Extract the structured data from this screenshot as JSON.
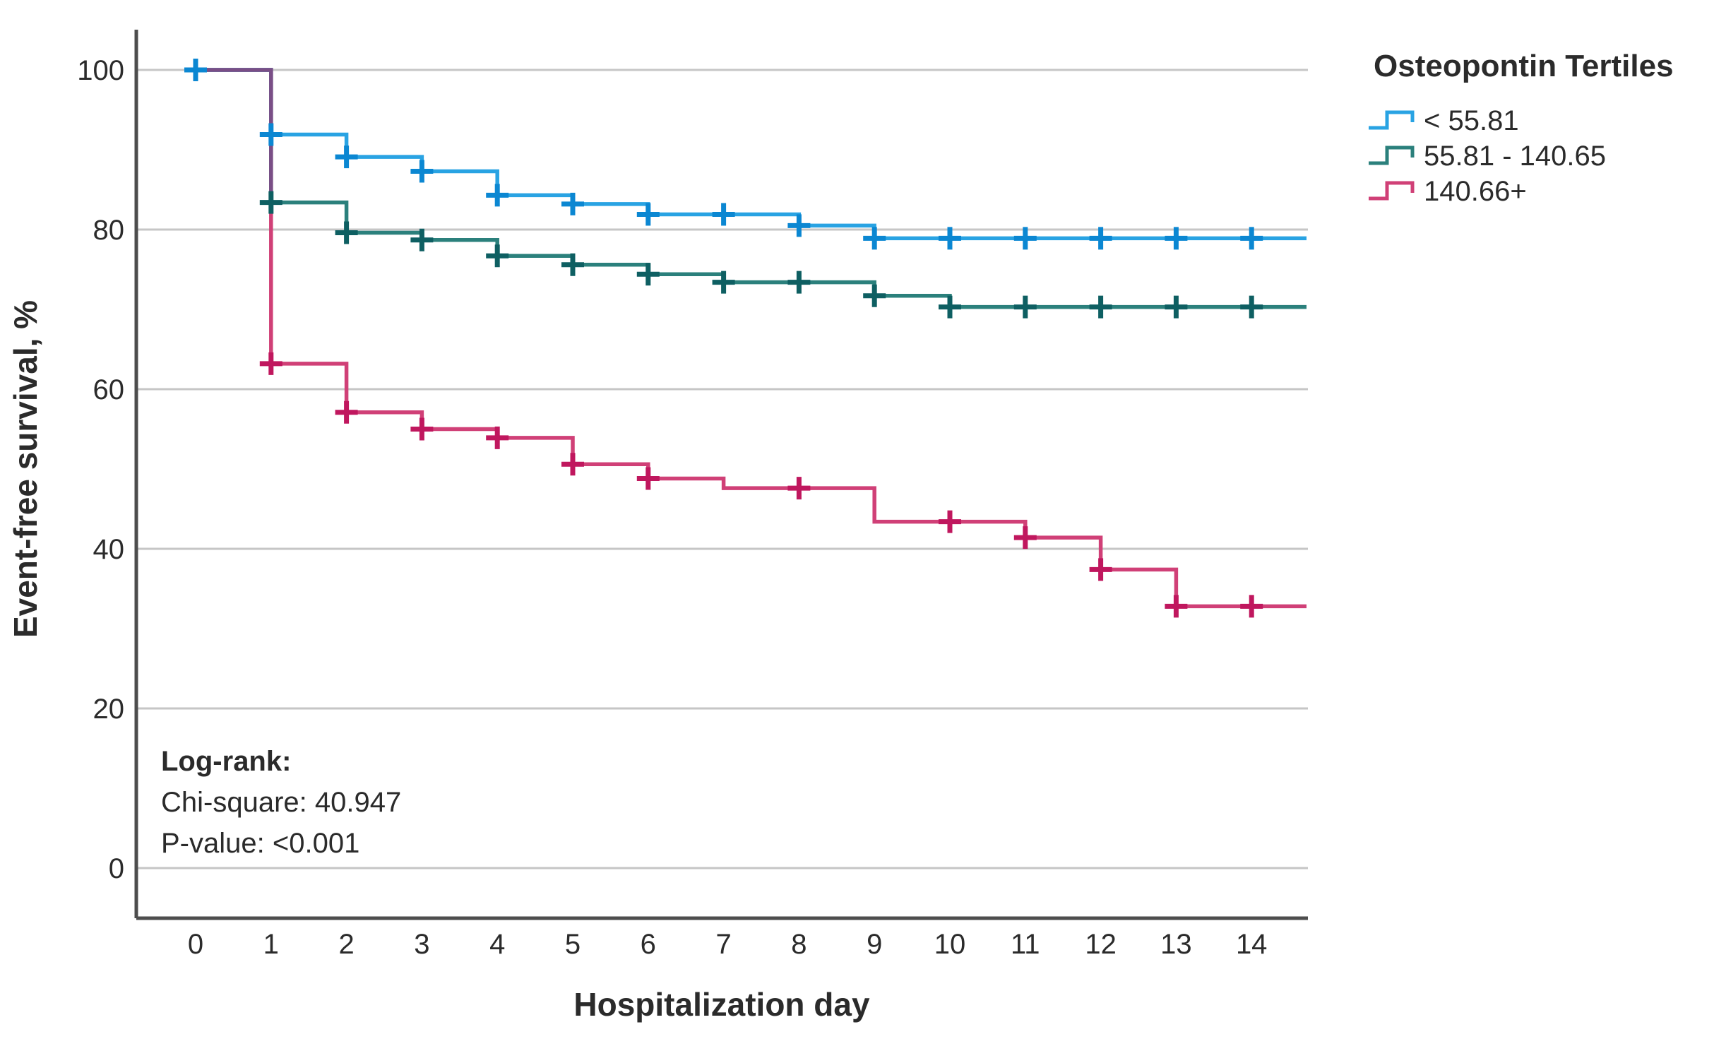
{
  "chart_data": {
    "type": "line",
    "subtype": "kaplan-meier-step",
    "xlabel": "Hospitalization day",
    "ylabel": "Event-free survival, %",
    "xticks": [
      0,
      1,
      2,
      3,
      4,
      5,
      6,
      7,
      8,
      9,
      10,
      11,
      12,
      13,
      14
    ],
    "yticks": [
      0,
      20,
      40,
      60,
      80,
      100
    ],
    "xlim": [
      0,
      14.73
    ],
    "ylim": [
      0,
      100
    ],
    "grid": true,
    "legend_position": "right",
    "legend_title": "Osteopontin Tertiles",
    "colors": {
      "grid": "#c6c6c6",
      "axis": "#4d4d4d",
      "text": "#2b2b2b",
      "overlap_segment": "#7a4e86"
    },
    "annotation": {
      "title": "Log-rank:",
      "lines": [
        "Chi-square: 40.947",
        "P-value: <0.001"
      ]
    },
    "series": [
      {
        "name": "< 55.81",
        "line_color": "#29a3e3",
        "mark_color": "#0b87d2",
        "start": [
          0,
          100
        ],
        "steps": [
          [
            1,
            91.9
          ],
          [
            2,
            89.1
          ],
          [
            3,
            87.3
          ],
          [
            4,
            84.3
          ],
          [
            5,
            83.2
          ],
          [
            6,
            81.9
          ],
          [
            8,
            80.5
          ],
          [
            9,
            78.9
          ]
        ],
        "end_value": 78.9,
        "censors": [
          [
            0,
            100
          ],
          [
            1,
            91.9
          ],
          [
            2,
            89.1
          ],
          [
            3,
            87.3
          ],
          [
            4,
            84.3
          ],
          [
            5,
            83.2
          ],
          [
            6,
            81.9
          ],
          [
            7,
            81.9
          ],
          [
            8,
            80.5
          ],
          [
            9,
            78.9
          ],
          [
            10,
            78.9
          ],
          [
            11,
            78.9
          ],
          [
            12,
            78.9
          ],
          [
            13,
            78.9
          ],
          [
            14,
            78.9
          ]
        ]
      },
      {
        "name": "55.81 - 140.65",
        "line_color": "#2b807c",
        "mark_color": "#0e5f62",
        "start": [
          0,
          100
        ],
        "steps": [
          [
            1,
            83.4
          ],
          [
            2,
            79.6
          ],
          [
            3,
            78.7
          ],
          [
            4,
            76.7
          ],
          [
            5,
            75.6
          ],
          [
            6,
            74.4
          ],
          [
            7,
            73.4
          ],
          [
            9,
            71.7
          ],
          [
            10,
            70.3
          ]
        ],
        "end_value": 70.3,
        "censors": [
          [
            1,
            83.4
          ],
          [
            2,
            79.6
          ],
          [
            3,
            78.7
          ],
          [
            4,
            76.7
          ],
          [
            5,
            75.6
          ],
          [
            6,
            74.4
          ],
          [
            7,
            73.4
          ],
          [
            8,
            73.4
          ],
          [
            9,
            71.7
          ],
          [
            10,
            70.3
          ],
          [
            11,
            70.3
          ],
          [
            12,
            70.3
          ],
          [
            13,
            70.3
          ],
          [
            14,
            70.3
          ]
        ]
      },
      {
        "name": "140.66+",
        "line_color": "#d04077",
        "mark_color": "#c0175e",
        "start": [
          0,
          100
        ],
        "steps": [
          [
            1,
            63.2
          ],
          [
            2,
            57.1
          ],
          [
            3,
            55.0
          ],
          [
            4,
            53.9
          ],
          [
            5,
            50.6
          ],
          [
            6,
            48.8
          ],
          [
            7,
            47.6
          ],
          [
            9,
            43.4
          ],
          [
            11,
            41.4
          ],
          [
            12,
            37.4
          ],
          [
            13,
            32.8
          ]
        ],
        "end_value": 32.8,
        "censors": [
          [
            1,
            63.2
          ],
          [
            2,
            57.1
          ],
          [
            3,
            55.0
          ],
          [
            4,
            53.9
          ],
          [
            5,
            50.6
          ],
          [
            6,
            48.8
          ],
          [
            8,
            47.6
          ],
          [
            10,
            43.4
          ],
          [
            11,
            41.4
          ],
          [
            12,
            37.4
          ],
          [
            13,
            32.8
          ],
          [
            14,
            32.8
          ]
        ]
      }
    ]
  }
}
